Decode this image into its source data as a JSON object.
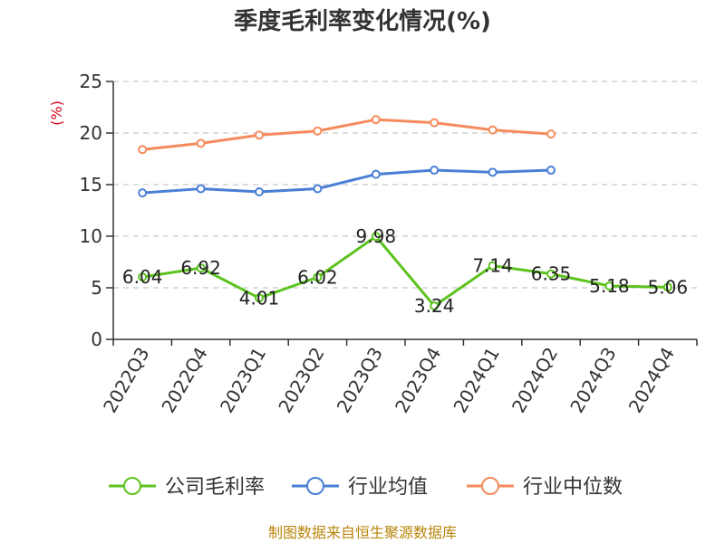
{
  "source_note": "制图数据来自恒生聚源数据库",
  "chart_data": {
    "type": "line",
    "title": "季度毛利率变化情况(%)",
    "ylabel": "(%)",
    "xlabel": "",
    "ylim": [
      0,
      25
    ],
    "yticks": [
      0,
      5,
      10,
      15,
      20,
      25
    ],
    "grid": true,
    "legend_position": "bottom",
    "categories": [
      "2022Q3",
      "2022Q4",
      "2023Q1",
      "2023Q2",
      "2023Q3",
      "2023Q4",
      "2024Q1",
      "2024Q2",
      "2024Q3",
      "2024Q4"
    ],
    "series": [
      {
        "name": "公司毛利率",
        "color": "#5cc31f",
        "values": [
          6.04,
          6.92,
          4.01,
          6.02,
          9.98,
          3.24,
          7.14,
          6.35,
          5.18,
          5.06
        ],
        "labels": [
          "6.04",
          "6.92",
          "4.01",
          "6.02",
          "9.98",
          "3.24",
          "7.14",
          "6.35",
          "5.18",
          "5.06"
        ]
      },
      {
        "name": "行业均值",
        "color": "#4a7fd6",
        "values": [
          14.2,
          14.6,
          14.3,
          14.6,
          16.0,
          16.4,
          16.2,
          16.4,
          null,
          null
        ]
      },
      {
        "name": "行业中位数",
        "color": "#f58b5c",
        "values": [
          18.4,
          19.0,
          19.8,
          20.2,
          21.3,
          21.0,
          20.3,
          19.9,
          null,
          null
        ]
      }
    ]
  }
}
